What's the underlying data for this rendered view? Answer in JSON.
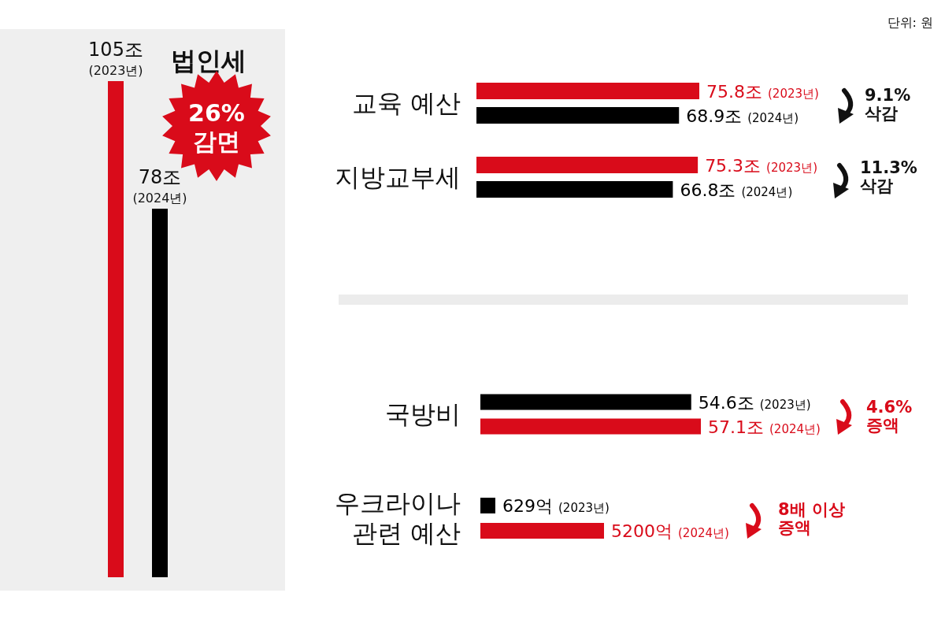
{
  "chart_data": [
    {
      "type": "bar",
      "title": "법인세",
      "categories": [
        null,
        null
      ],
      "values": [
        105,
        78
      ],
      "colors": [
        "#d90b1a",
        "#000000"
      ],
      "value_labels": [
        "105조\n(2023년)",
        "78조\n(2024년)"
      ],
      "annotations": [
        "26%\n감면",
        "단위: 원"
      ]
    },
    {
      "type": "bar",
      "orientation": "horizontal",
      "categories": [
        "교육 예산",
        "지방교부세"
      ],
      "series": [
        {
          "color": "#d90b1a",
          "values": [
            75.8,
            75.3
          ],
          "value_labels": [
            "75.8조 (2023년)",
            "75.3조 (2023년)"
          ]
        },
        {
          "color": "#000000",
          "values": [
            68.9,
            66.8
          ],
          "value_labels": [
            "68.9조 (2024년)",
            "66.8조 (2024년)"
          ]
        }
      ],
      "annotations": [
        "9.1%\n삭감",
        "11.3%\n삭감"
      ]
    },
    {
      "type": "bar",
      "orientation": "horizontal",
      "categories": [
        "국방비"
      ],
      "series": [
        {
          "color": "#000000",
          "values": [
            54.6
          ],
          "value_labels": [
            "54.6조 (2023년)"
          ]
        },
        {
          "color": "#d90b1a",
          "values": [
            57.1
          ],
          "value_labels": [
            "57.1조 (2024년)"
          ]
        }
      ],
      "annotations": [
        "4.6%\n증액"
      ]
    },
    {
      "type": "bar",
      "orientation": "horizontal",
      "categories": [
        "우크라이나\n관련 예산"
      ],
      "series": [
        {
          "color": "#000000",
          "values": [
            629
          ],
          "value_labels": [
            "629억 (2023년)"
          ]
        },
        {
          "color": "#d90b1a",
          "values": [
            5200
          ],
          "value_labels": [
            "5200억 (2024년)"
          ]
        }
      ],
      "annotations": [
        "8배 이상\n증액"
      ]
    }
  ]
}
